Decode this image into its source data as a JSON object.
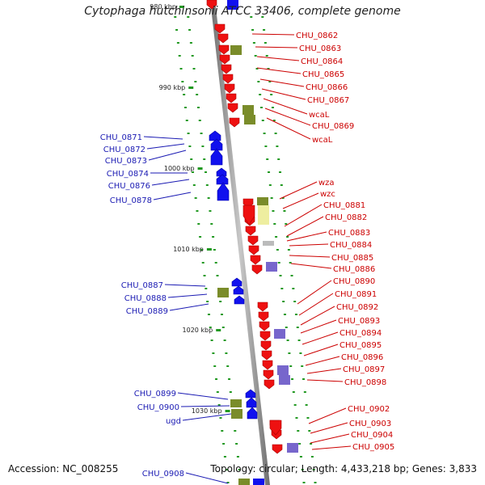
{
  "title": "Cytophaga hutchinsonii ATCC 33406, complete genome",
  "footer": {
    "accession": "Accession: NC_008255",
    "summary": "Topology: circular; Length: 4,433,218 bp; Genes: 3,833"
  },
  "colors": {
    "backbone": "#8c8c8c",
    "forward_label": "#cc0000",
    "reverse_label": "#1a1ab3",
    "gene_forward": "#ee1111",
    "gene_reverse": "#1111ee",
    "feature_olive": "#7a8c2a",
    "feature_purple": "#7766cc",
    "feature_yellow": "#eeeea0",
    "feature_gray": "#bbbbbb",
    "feature_cyan": "#22bbcc",
    "tick": "#229922"
  },
  "scale_ticks": [
    "980 kbp",
    "990 kbp",
    "1000 kbp",
    "1010 kbp",
    "1020 kbp",
    "1030 kbp"
  ],
  "right_genes": [
    "CHU_0862",
    "CHU_0863",
    "CHU_0864",
    "CHU_0865",
    "CHU_0866",
    "CHU_0867",
    "wcaL",
    "CHU_0869",
    "wcaL",
    "wza",
    "wzc",
    "CHU_0881",
    "CHU_0882",
    "CHU_0883",
    "CHU_0884",
    "CHU_0885",
    "CHU_0886",
    "CHU_0890",
    "CHU_0891",
    "CHU_0892",
    "CHU_0893",
    "CHU_0894",
    "CHU_0895",
    "CHU_0896",
    "CHU_0897",
    "CHU_0898",
    "CHU_0902",
    "CHU_0903",
    "CHU_0904",
    "CHU_0905"
  ],
  "left_genes": [
    "CHU_0871",
    "CHU_0872",
    "CHU_0873",
    "CHU_0874",
    "CHU_0876",
    "CHU_0878",
    "CHU_0887",
    "CHU_0888",
    "CHU_0889",
    "CHU_0899",
    "CHU_0900",
    "ugd",
    "CHU_0908"
  ]
}
